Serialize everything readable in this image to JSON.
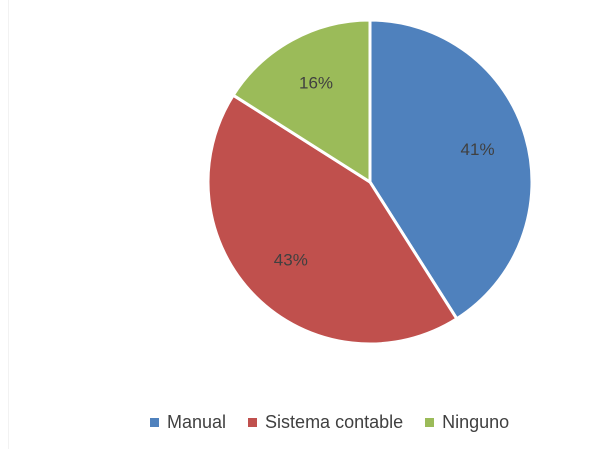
{
  "chart_data": {
    "type": "pie",
    "categories": [
      "Manual",
      "Sistema contable",
      "Ninguno"
    ],
    "values": [
      41,
      43,
      16
    ],
    "labels": [
      "41%",
      "43%",
      "16%"
    ],
    "colors": [
      "#4f81bd",
      "#c0504d",
      "#9bbb59"
    ],
    "legend_position": "bottom",
    "start_angle_deg": 0,
    "direction": "clockwise"
  }
}
